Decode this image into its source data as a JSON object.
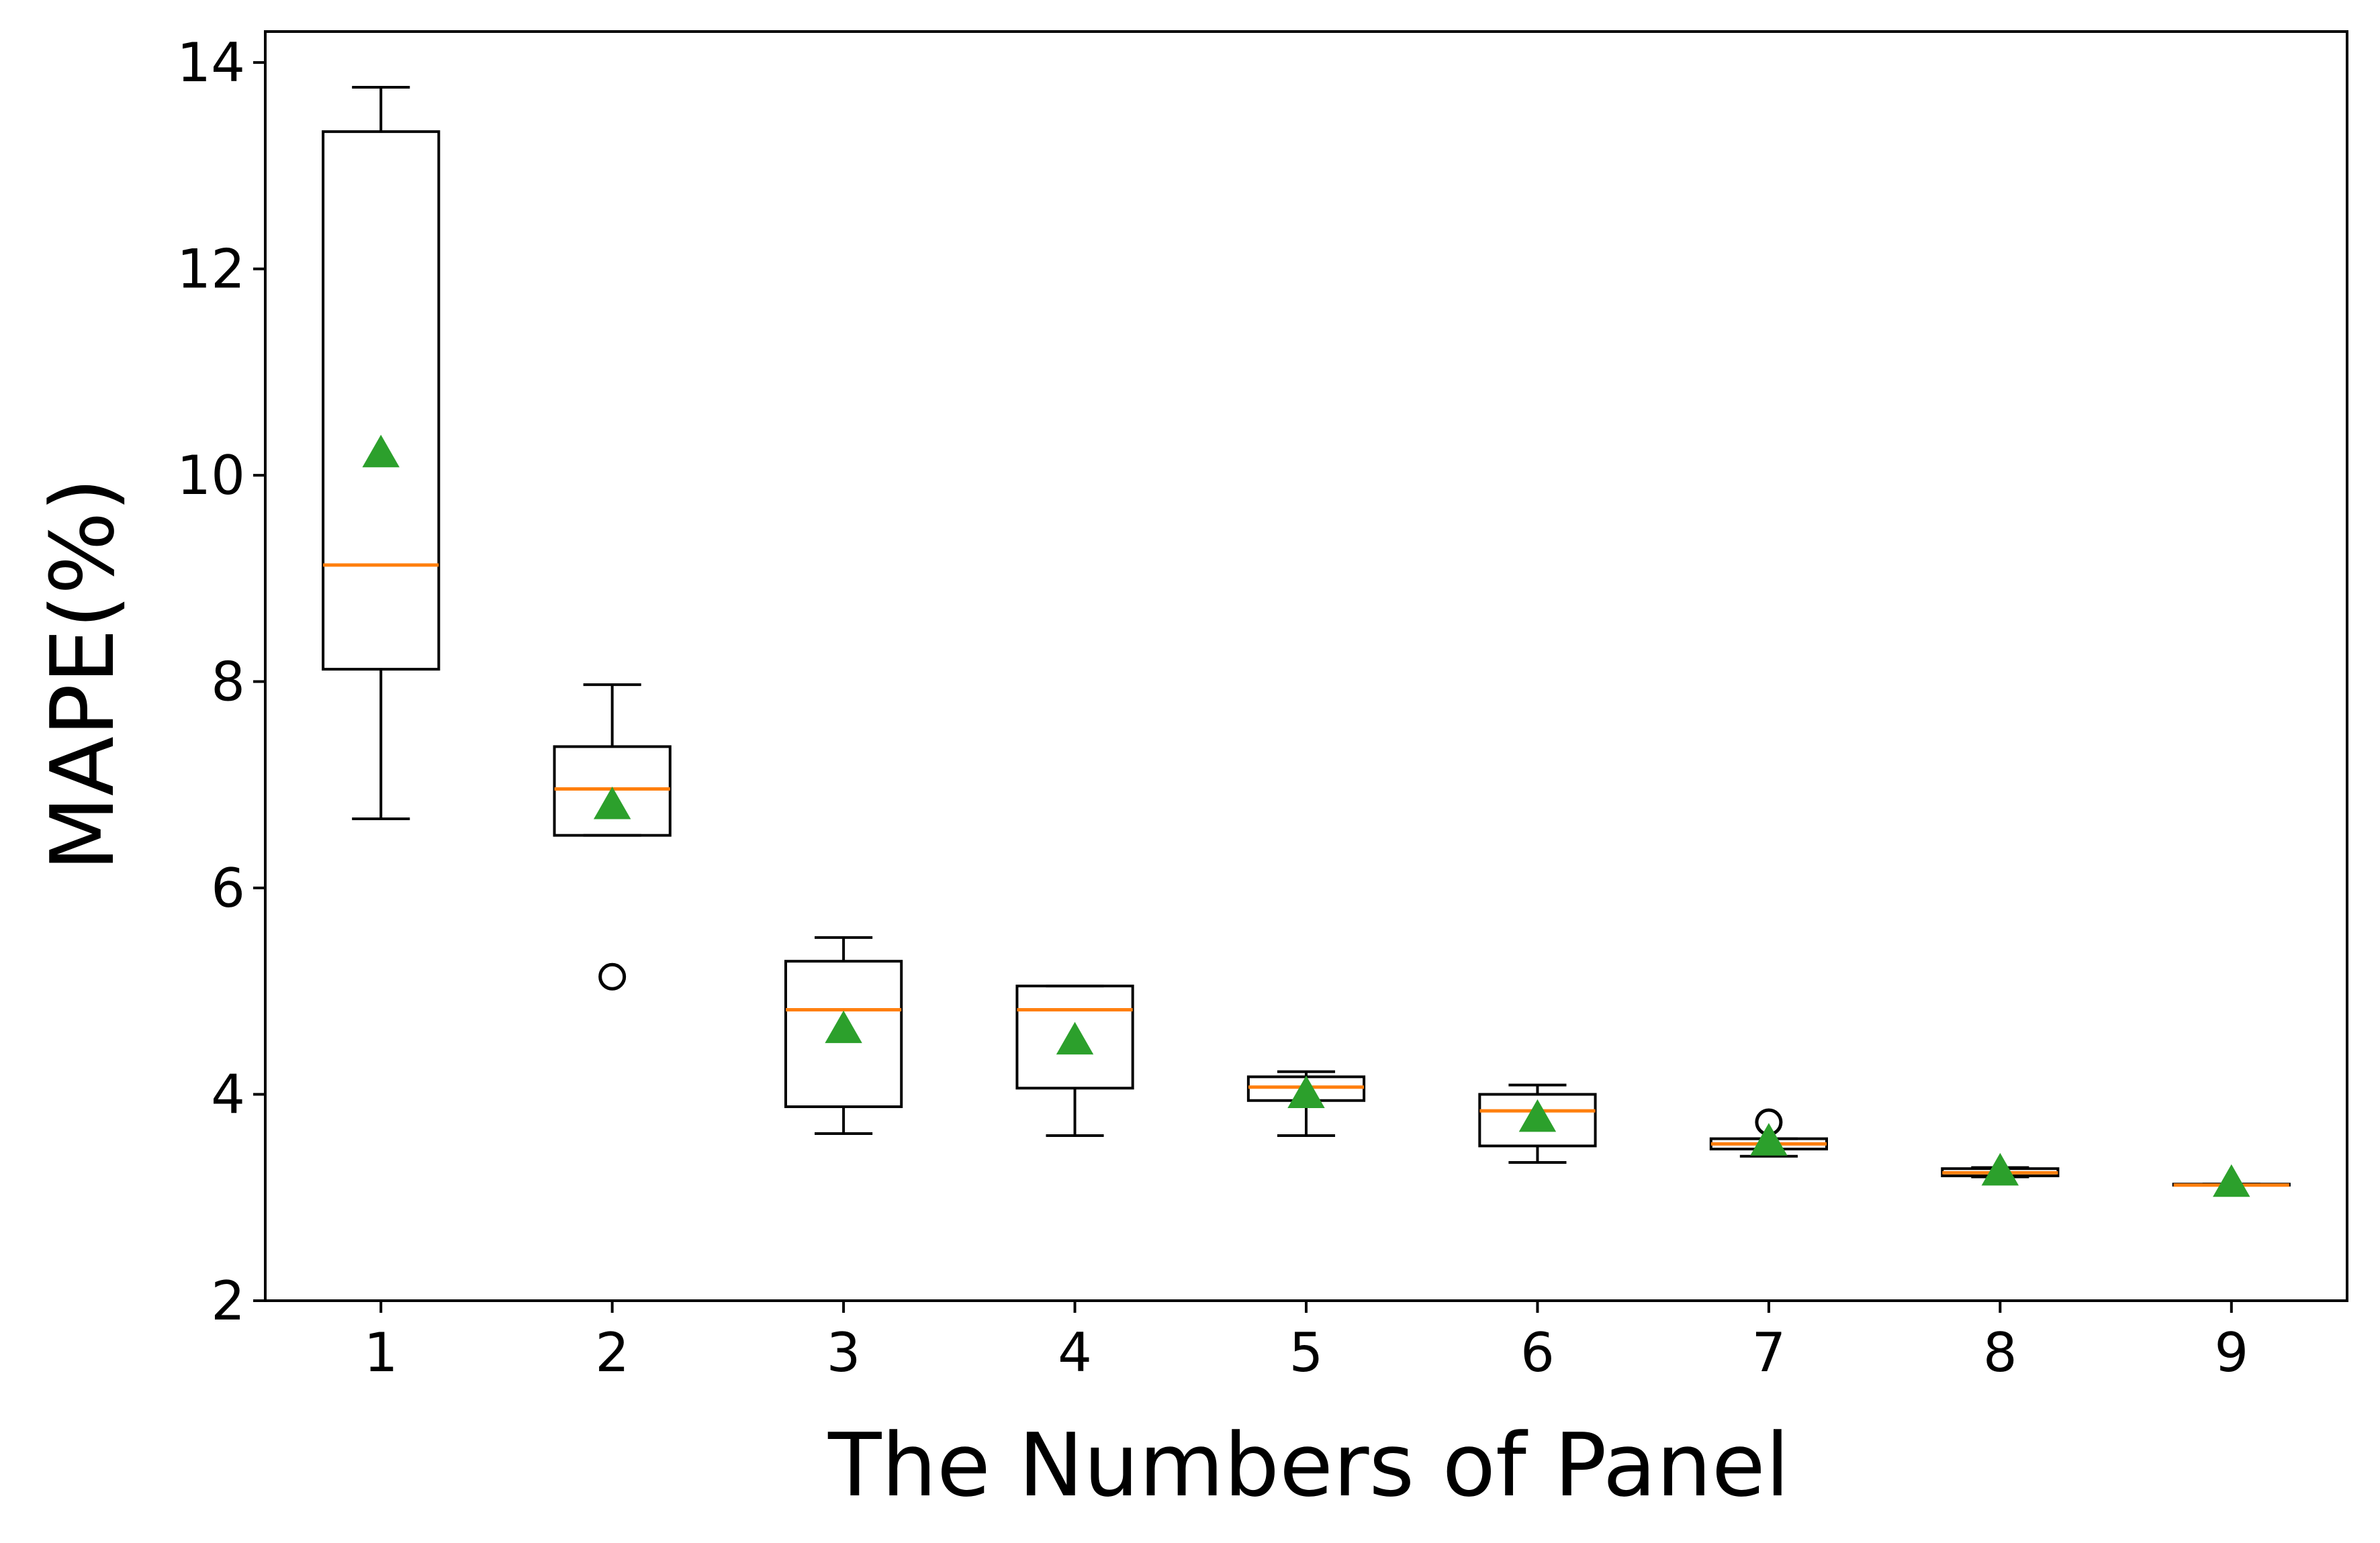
{
  "chart_data": {
    "type": "box",
    "xlabel": "The Numbers of Panel",
    "ylabel": "MAPE(%)",
    "ylim": [
      2,
      14.3
    ],
    "yticks": [
      2,
      4,
      6,
      8,
      10,
      12,
      14
    ],
    "categories": [
      "1",
      "2",
      "3",
      "4",
      "5",
      "6",
      "7",
      "8",
      "9"
    ],
    "boxes": [
      {
        "category": "1",
        "whisker_low": 6.67,
        "q1": 8.12,
        "median": 9.13,
        "q3": 13.33,
        "whisker_high": 13.76,
        "mean": 10.21,
        "outliers": []
      },
      {
        "category": "2",
        "whisker_low": 6.51,
        "q1": 6.51,
        "median": 6.96,
        "q3": 7.37,
        "whisker_high": 7.97,
        "mean": 6.8,
        "outliers": [
          5.14
        ]
      },
      {
        "category": "3",
        "whisker_low": 3.62,
        "q1": 3.88,
        "median": 4.82,
        "q3": 5.29,
        "whisker_high": 5.52,
        "mean": 4.63,
        "outliers": []
      },
      {
        "category": "4",
        "whisker_low": 3.6,
        "q1": 4.06,
        "median": 4.82,
        "q3": 5.05,
        "whisker_high": 5.05,
        "mean": 4.52,
        "outliers": []
      },
      {
        "category": "5",
        "whisker_low": 3.6,
        "q1": 3.94,
        "median": 4.07,
        "q3": 4.17,
        "whisker_high": 4.22,
        "mean": 4.0,
        "outliers": []
      },
      {
        "category": "6",
        "whisker_low": 3.34,
        "q1": 3.5,
        "median": 3.84,
        "q3": 4.0,
        "whisker_high": 4.09,
        "mean": 3.77,
        "outliers": []
      },
      {
        "category": "7",
        "whisker_low": 3.4,
        "q1": 3.47,
        "median": 3.52,
        "q3": 3.57,
        "whisker_high": 3.57,
        "mean": 3.54,
        "outliers": [
          3.73
        ]
      },
      {
        "category": "8",
        "whisker_low": 3.2,
        "q1": 3.21,
        "median": 3.24,
        "q3": 3.28,
        "whisker_high": 3.29,
        "mean": 3.25,
        "outliers": []
      },
      {
        "category": "9",
        "whisker_low": 3.12,
        "q1": 3.12,
        "median": 3.12,
        "q3": 3.13,
        "whisker_high": 3.13,
        "mean": 3.14,
        "outliers": []
      }
    ],
    "colors": {
      "box": "#000000",
      "median": "#ff7f0e",
      "mean": "#2ca02c",
      "outlier": "#000000"
    },
    "grid": false,
    "legend": "none"
  }
}
